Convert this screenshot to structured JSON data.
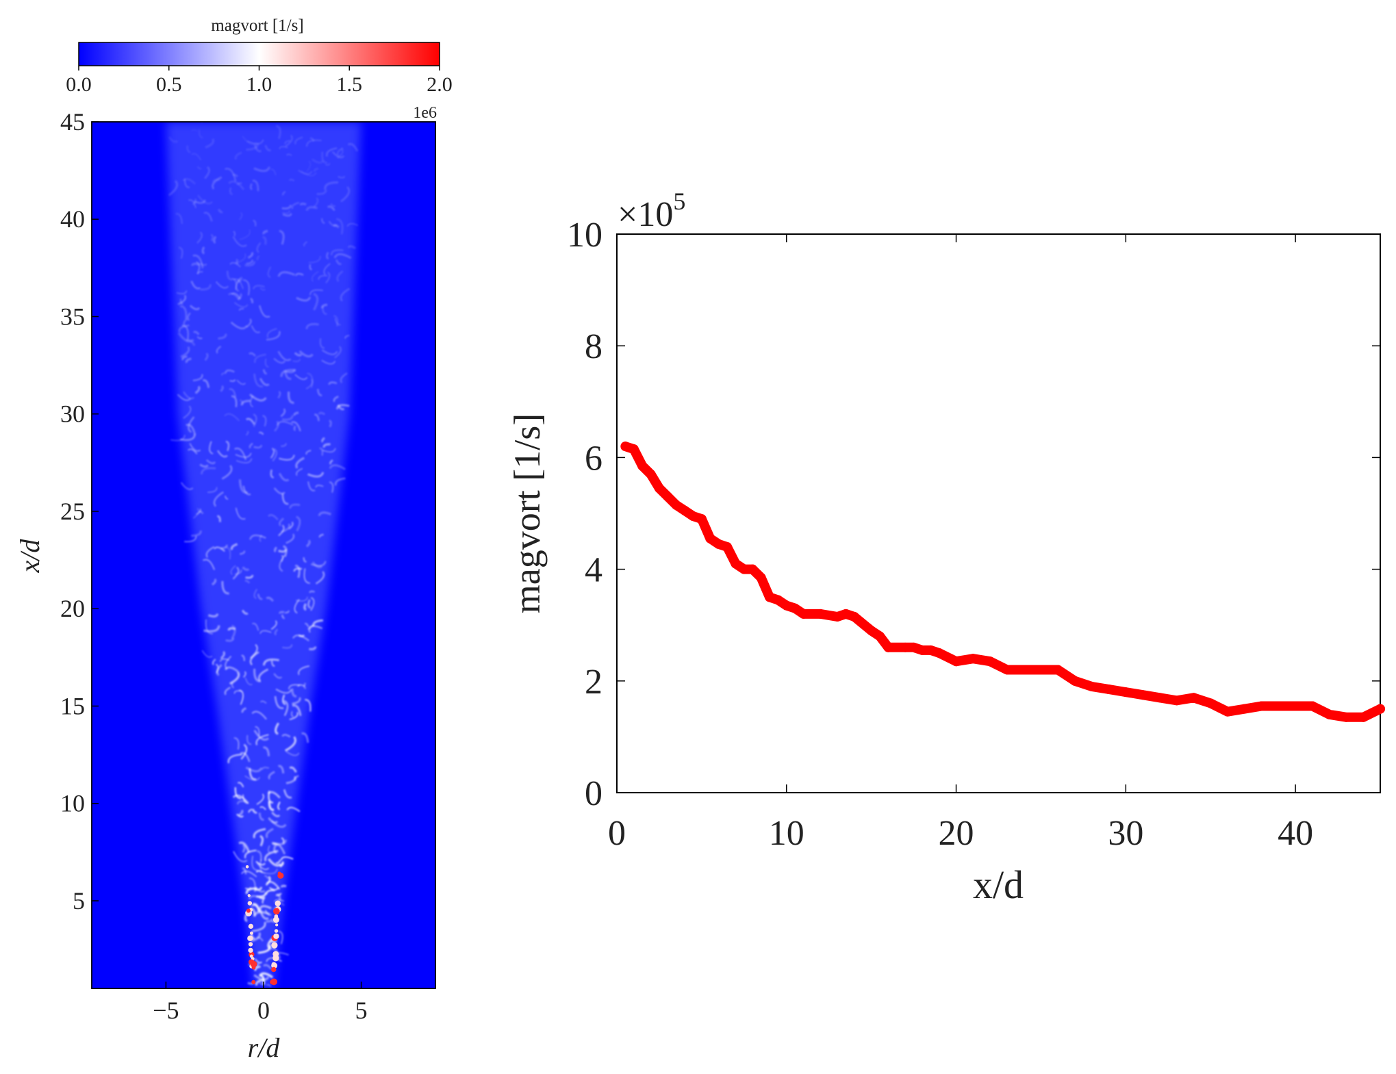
{
  "chart_data": [
    {
      "type": "heatmap",
      "colorbar": {
        "label": "magvort [1/s]",
        "ticks": [
          "0.0",
          "0.5",
          "1.0",
          "1.5",
          "2.0"
        ],
        "range": [
          0.0,
          2.0
        ],
        "multiplier": "1e6",
        "colors": [
          "#0000ff",
          "#ffffff",
          "#ff0000"
        ]
      },
      "xlabel": "r/d",
      "ylabel": "x/d",
      "xticks": [
        "−5",
        "0",
        "5"
      ],
      "yticks": [
        "5",
        "10",
        "15",
        "20",
        "25",
        "30",
        "35",
        "40",
        "45"
      ],
      "xlim": [
        -8.8,
        8.8
      ],
      "ylim": [
        0.5,
        45
      ],
      "background_color": "#0000ff",
      "jet_field": [
        {
          "x": 0.5,
          "halfwidth": 0.5,
          "intensity": 1.0
        },
        {
          "x": 5,
          "halfwidth": 1.0,
          "intensity": 0.95
        },
        {
          "x": 10,
          "halfwidth": 1.7,
          "intensity": 0.85
        },
        {
          "x": 15,
          "halfwidth": 2.4,
          "intensity": 0.75
        },
        {
          "x": 20,
          "halfwidth": 3.2,
          "intensity": 0.65
        },
        {
          "x": 25,
          "halfwidth": 3.8,
          "intensity": 0.55
        },
        {
          "x": 30,
          "halfwidth": 4.4,
          "intensity": 0.45
        },
        {
          "x": 35,
          "halfwidth": 4.6,
          "intensity": 0.35
        },
        {
          "x": 40,
          "halfwidth": 4.8,
          "intensity": 0.25
        },
        {
          "x": 45,
          "halfwidth": 5.0,
          "intensity": 0.15
        }
      ]
    },
    {
      "type": "line",
      "ylabel": "magvort [1/s]",
      "xlabel": "x/d",
      "multiplier": "×10",
      "multiplier_exp": "5",
      "xlim": [
        0,
        45
      ],
      "ylim": [
        0,
        10
      ],
      "xticks": [
        "0",
        "10",
        "20",
        "30",
        "40"
      ],
      "yticks": [
        "0",
        "2",
        "4",
        "6",
        "8",
        "10"
      ],
      "grid": false,
      "line_color": "#ff0000",
      "series": [
        {
          "x": [
            0.5,
            1,
            1.5,
            2,
            2.5,
            3,
            3.5,
            4,
            4.5,
            5,
            5.5,
            6,
            6.5,
            7,
            7.5,
            8,
            8.5,
            9,
            9.5,
            10,
            10.5,
            11,
            12,
            13,
            13.5,
            14,
            15,
            15.5,
            16,
            17,
            17.5,
            18,
            18.5,
            19,
            20,
            21,
            22,
            23,
            24,
            25,
            26,
            27,
            28,
            29,
            30,
            31,
            32,
            33,
            34,
            35,
            36,
            37,
            38,
            39,
            40,
            41,
            42,
            43,
            44,
            45
          ],
          "y": [
            6.2,
            6.15,
            5.85,
            5.7,
            5.45,
            5.3,
            5.15,
            5.05,
            4.95,
            4.9,
            4.55,
            4.45,
            4.4,
            4.1,
            4.0,
            4.0,
            3.85,
            3.5,
            3.45,
            3.35,
            3.3,
            3.2,
            3.2,
            3.15,
            3.2,
            3.15,
            2.9,
            2.8,
            2.6,
            2.6,
            2.6,
            2.55,
            2.55,
            2.5,
            2.35,
            2.4,
            2.35,
            2.2,
            2.2,
            2.2,
            2.2,
            2.0,
            1.9,
            1.85,
            1.8,
            1.75,
            1.7,
            1.65,
            1.7,
            1.6,
            1.45,
            1.5,
            1.55,
            1.55,
            1.55,
            1.55,
            1.4,
            1.35,
            1.35,
            1.5
          ]
        }
      ]
    }
  ]
}
